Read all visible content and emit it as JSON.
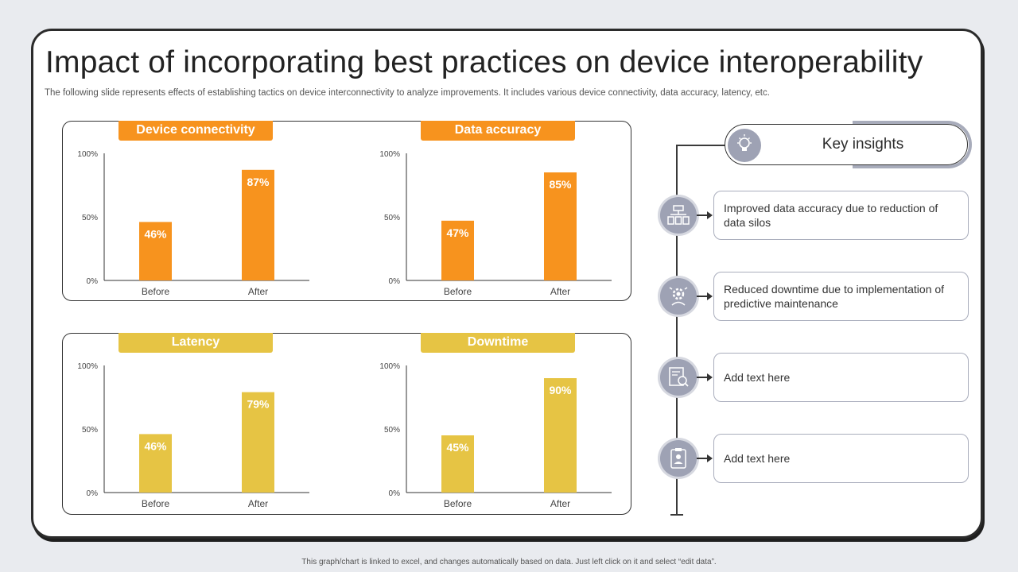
{
  "slide": {
    "title": "Impact of incorporating best practices on device interoperability",
    "subtitle": "The following slide represents effects of establishing tactics on device interconnectivity to analyze improvements. It includes various device connectivity, data accuracy, latency, etc.",
    "footer": "This graph/chart is linked to excel, and changes automatically based on data. Just left click on it and select “edit data”."
  },
  "colors": {
    "orange": "#f7931e",
    "yellow": "#e6c444",
    "icon_gray": "#9ea2b4"
  },
  "chart_data": [
    {
      "type": "bar",
      "title": "Device connectivity",
      "color": "orange",
      "categories": [
        "Before",
        "After"
      ],
      "values": [
        46,
        87
      ],
      "value_labels": [
        "46%",
        "87%"
      ],
      "yticks": [
        "0%",
        "50%",
        "100%"
      ],
      "ylim": [
        0,
        100
      ]
    },
    {
      "type": "bar",
      "title": "Data accuracy",
      "color": "orange",
      "categories": [
        "Before",
        "After"
      ],
      "values": [
        47,
        85
      ],
      "value_labels": [
        "47%",
        "85%"
      ],
      "yticks": [
        "0%",
        "50%",
        "100%"
      ],
      "ylim": [
        0,
        100
      ]
    },
    {
      "type": "bar",
      "title": "Latency",
      "color": "yellow",
      "categories": [
        "Before",
        "After"
      ],
      "values": [
        46,
        79
      ],
      "value_labels": [
        "46%",
        "79%"
      ],
      "yticks": [
        "0%",
        "50%",
        "100%"
      ],
      "ylim": [
        0,
        100
      ]
    },
    {
      "type": "bar",
      "title": "Downtime",
      "color": "yellow",
      "categories": [
        "Before",
        "After"
      ],
      "values": [
        45,
        90
      ],
      "value_labels": [
        "45%",
        "90%"
      ],
      "yticks": [
        "0%",
        "50%",
        "100%"
      ],
      "ylim": [
        0,
        100
      ]
    }
  ],
  "insights": {
    "title": "Key insights",
    "header_icon": "lightbulb-icon",
    "items": [
      {
        "icon": "data-hierarchy-icon",
        "text": "Improved data accuracy due to reduction of data silos"
      },
      {
        "icon": "gear-person-icon",
        "text": "Reduced downtime due to implementation of predictive maintenance"
      },
      {
        "icon": "document-search-icon",
        "text": "Add text here"
      },
      {
        "icon": "clipboard-person-icon",
        "text": "Add text here"
      }
    ]
  }
}
